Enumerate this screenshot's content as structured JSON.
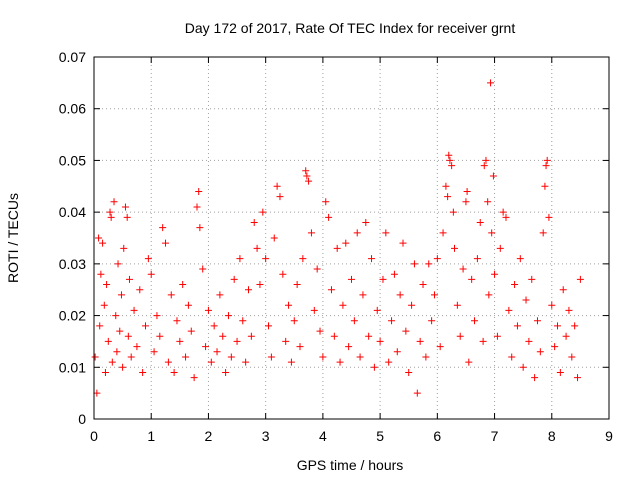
{
  "chart_data": {
    "type": "scatter",
    "title": "Day 172 of 2017, Rate Of TEC Index for receiver grnt",
    "xlabel": "GPS time / hours",
    "ylabel": "ROTI / TECUs",
    "xlim": [
      0,
      9
    ],
    "ylim": [
      0,
      0.07
    ],
    "xticks": [
      "0",
      "1",
      "2",
      "3",
      "4",
      "5",
      "6",
      "7",
      "8",
      "9"
    ],
    "yticks": [
      "0",
      "0.01",
      "0.02",
      "0.03",
      "0.04",
      "0.05",
      "0.06",
      "0.07"
    ],
    "grid": true,
    "marker": "plus",
    "color": "#ff0000",
    "points": [
      [
        0.02,
        0.012
      ],
      [
        0.05,
        0.005
      ],
      [
        0.08,
        0.035
      ],
      [
        0.1,
        0.018
      ],
      [
        0.12,
        0.028
      ],
      [
        0.15,
        0.034
      ],
      [
        0.18,
        0.022
      ],
      [
        0.2,
        0.009
      ],
      [
        0.22,
        0.026
      ],
      [
        0.25,
        0.015
      ],
      [
        0.28,
        0.04
      ],
      [
        0.3,
        0.039
      ],
      [
        0.32,
        0.011
      ],
      [
        0.35,
        0.042
      ],
      [
        0.38,
        0.02
      ],
      [
        0.4,
        0.013
      ],
      [
        0.42,
        0.03
      ],
      [
        0.45,
        0.017
      ],
      [
        0.48,
        0.024
      ],
      [
        0.5,
        0.01
      ],
      [
        0.52,
        0.033
      ],
      [
        0.55,
        0.041
      ],
      [
        0.58,
        0.039
      ],
      [
        0.6,
        0.016
      ],
      [
        0.62,
        0.027
      ],
      [
        0.65,
        0.012
      ],
      [
        0.7,
        0.021
      ],
      [
        0.75,
        0.014
      ],
      [
        0.8,
        0.025
      ],
      [
        0.85,
        0.009
      ],
      [
        0.9,
        0.018
      ],
      [
        0.95,
        0.031
      ],
      [
        1.0,
        0.028
      ],
      [
        1.05,
        0.013
      ],
      [
        1.1,
        0.02
      ],
      [
        1.15,
        0.016
      ],
      [
        1.2,
        0.037
      ],
      [
        1.25,
        0.034
      ],
      [
        1.3,
        0.011
      ],
      [
        1.35,
        0.024
      ],
      [
        1.4,
        0.009
      ],
      [
        1.45,
        0.019
      ],
      [
        1.5,
        0.015
      ],
      [
        1.55,
        0.026
      ],
      [
        1.6,
        0.012
      ],
      [
        1.65,
        0.022
      ],
      [
        1.7,
        0.017
      ],
      [
        1.75,
        0.008
      ],
      [
        1.8,
        0.041
      ],
      [
        1.83,
        0.044
      ],
      [
        1.85,
        0.037
      ],
      [
        1.9,
        0.029
      ],
      [
        1.95,
        0.014
      ],
      [
        2.0,
        0.021
      ],
      [
        2.05,
        0.011
      ],
      [
        2.1,
        0.018
      ],
      [
        2.15,
        0.013
      ],
      [
        2.2,
        0.024
      ],
      [
        2.25,
        0.016
      ],
      [
        2.3,
        0.009
      ],
      [
        2.35,
        0.02
      ],
      [
        2.4,
        0.012
      ],
      [
        2.45,
        0.027
      ],
      [
        2.5,
        0.015
      ],
      [
        2.55,
        0.031
      ],
      [
        2.6,
        0.019
      ],
      [
        2.65,
        0.011
      ],
      [
        2.7,
        0.025
      ],
      [
        2.75,
        0.016
      ],
      [
        2.8,
        0.038
      ],
      [
        2.85,
        0.033
      ],
      [
        2.9,
        0.026
      ],
      [
        2.95,
        0.04
      ],
      [
        3.0,
        0.031
      ],
      [
        3.05,
        0.018
      ],
      [
        3.1,
        0.012
      ],
      [
        3.15,
        0.035
      ],
      [
        3.2,
        0.045
      ],
      [
        3.25,
        0.043
      ],
      [
        3.3,
        0.028
      ],
      [
        3.35,
        0.015
      ],
      [
        3.4,
        0.022
      ],
      [
        3.45,
        0.011
      ],
      [
        3.5,
        0.019
      ],
      [
        3.55,
        0.026
      ],
      [
        3.6,
        0.014
      ],
      [
        3.65,
        0.031
      ],
      [
        3.7,
        0.048
      ],
      [
        3.72,
        0.047
      ],
      [
        3.75,
        0.046
      ],
      [
        3.8,
        0.036
      ],
      [
        3.85,
        0.021
      ],
      [
        3.9,
        0.029
      ],
      [
        3.95,
        0.017
      ],
      [
        4.0,
        0.012
      ],
      [
        4.05,
        0.042
      ],
      [
        4.1,
        0.039
      ],
      [
        4.15,
        0.025
      ],
      [
        4.2,
        0.016
      ],
      [
        4.25,
        0.033
      ],
      [
        4.3,
        0.011
      ],
      [
        4.35,
        0.022
      ],
      [
        4.4,
        0.034
      ],
      [
        4.45,
        0.014
      ],
      [
        4.5,
        0.027
      ],
      [
        4.55,
        0.019
      ],
      [
        4.6,
        0.036
      ],
      [
        4.65,
        0.012
      ],
      [
        4.7,
        0.024
      ],
      [
        4.75,
        0.038
      ],
      [
        4.8,
        0.016
      ],
      [
        4.85,
        0.031
      ],
      [
        4.9,
        0.01
      ],
      [
        4.95,
        0.021
      ],
      [
        5.0,
        0.015
      ],
      [
        5.05,
        0.027
      ],
      [
        5.1,
        0.036
      ],
      [
        5.15,
        0.011
      ],
      [
        5.2,
        0.019
      ],
      [
        5.25,
        0.028
      ],
      [
        5.3,
        0.013
      ],
      [
        5.35,
        0.024
      ],
      [
        5.4,
        0.034
      ],
      [
        5.45,
        0.017
      ],
      [
        5.5,
        0.009
      ],
      [
        5.55,
        0.022
      ],
      [
        5.6,
        0.03
      ],
      [
        5.65,
        0.005
      ],
      [
        5.7,
        0.015
      ],
      [
        5.75,
        0.026
      ],
      [
        5.8,
        0.012
      ],
      [
        5.85,
        0.03
      ],
      [
        5.9,
        0.019
      ],
      [
        5.95,
        0.024
      ],
      [
        6.0,
        0.031
      ],
      [
        6.05,
        0.014
      ],
      [
        6.1,
        0.036
      ],
      [
        6.15,
        0.045
      ],
      [
        6.18,
        0.043
      ],
      [
        6.2,
        0.051
      ],
      [
        6.22,
        0.05
      ],
      [
        6.25,
        0.049
      ],
      [
        6.28,
        0.04
      ],
      [
        6.3,
        0.033
      ],
      [
        6.35,
        0.022
      ],
      [
        6.4,
        0.016
      ],
      [
        6.45,
        0.029
      ],
      [
        6.5,
        0.042
      ],
      [
        6.52,
        0.044
      ],
      [
        6.55,
        0.011
      ],
      [
        6.6,
        0.027
      ],
      [
        6.65,
        0.019
      ],
      [
        6.7,
        0.031
      ],
      [
        6.75,
        0.038
      ],
      [
        6.8,
        0.015
      ],
      [
        6.82,
        0.049
      ],
      [
        6.85,
        0.05
      ],
      [
        6.88,
        0.042
      ],
      [
        6.9,
        0.024
      ],
      [
        6.93,
        0.065
      ],
      [
        6.95,
        0.036
      ],
      [
        6.98,
        0.047
      ],
      [
        7.0,
        0.028
      ],
      [
        7.05,
        0.016
      ],
      [
        7.1,
        0.033
      ],
      [
        7.15,
        0.04
      ],
      [
        7.2,
        0.039
      ],
      [
        7.25,
        0.021
      ],
      [
        7.3,
        0.012
      ],
      [
        7.35,
        0.026
      ],
      [
        7.4,
        0.018
      ],
      [
        7.45,
        0.031
      ],
      [
        7.5,
        0.01
      ],
      [
        7.55,
        0.023
      ],
      [
        7.6,
        0.015
      ],
      [
        7.65,
        0.027
      ],
      [
        7.7,
        0.008
      ],
      [
        7.75,
        0.019
      ],
      [
        7.8,
        0.013
      ],
      [
        7.85,
        0.036
      ],
      [
        7.88,
        0.045
      ],
      [
        7.9,
        0.049
      ],
      [
        7.92,
        0.05
      ],
      [
        7.95,
        0.039
      ],
      [
        8.0,
        0.022
      ],
      [
        8.05,
        0.014
      ],
      [
        8.1,
        0.018
      ],
      [
        8.15,
        0.009
      ],
      [
        8.2,
        0.025
      ],
      [
        8.25,
        0.016
      ],
      [
        8.3,
        0.021
      ],
      [
        8.35,
        0.012
      ],
      [
        8.4,
        0.018
      ],
      [
        8.45,
        0.008
      ],
      [
        8.5,
        0.027
      ]
    ]
  }
}
